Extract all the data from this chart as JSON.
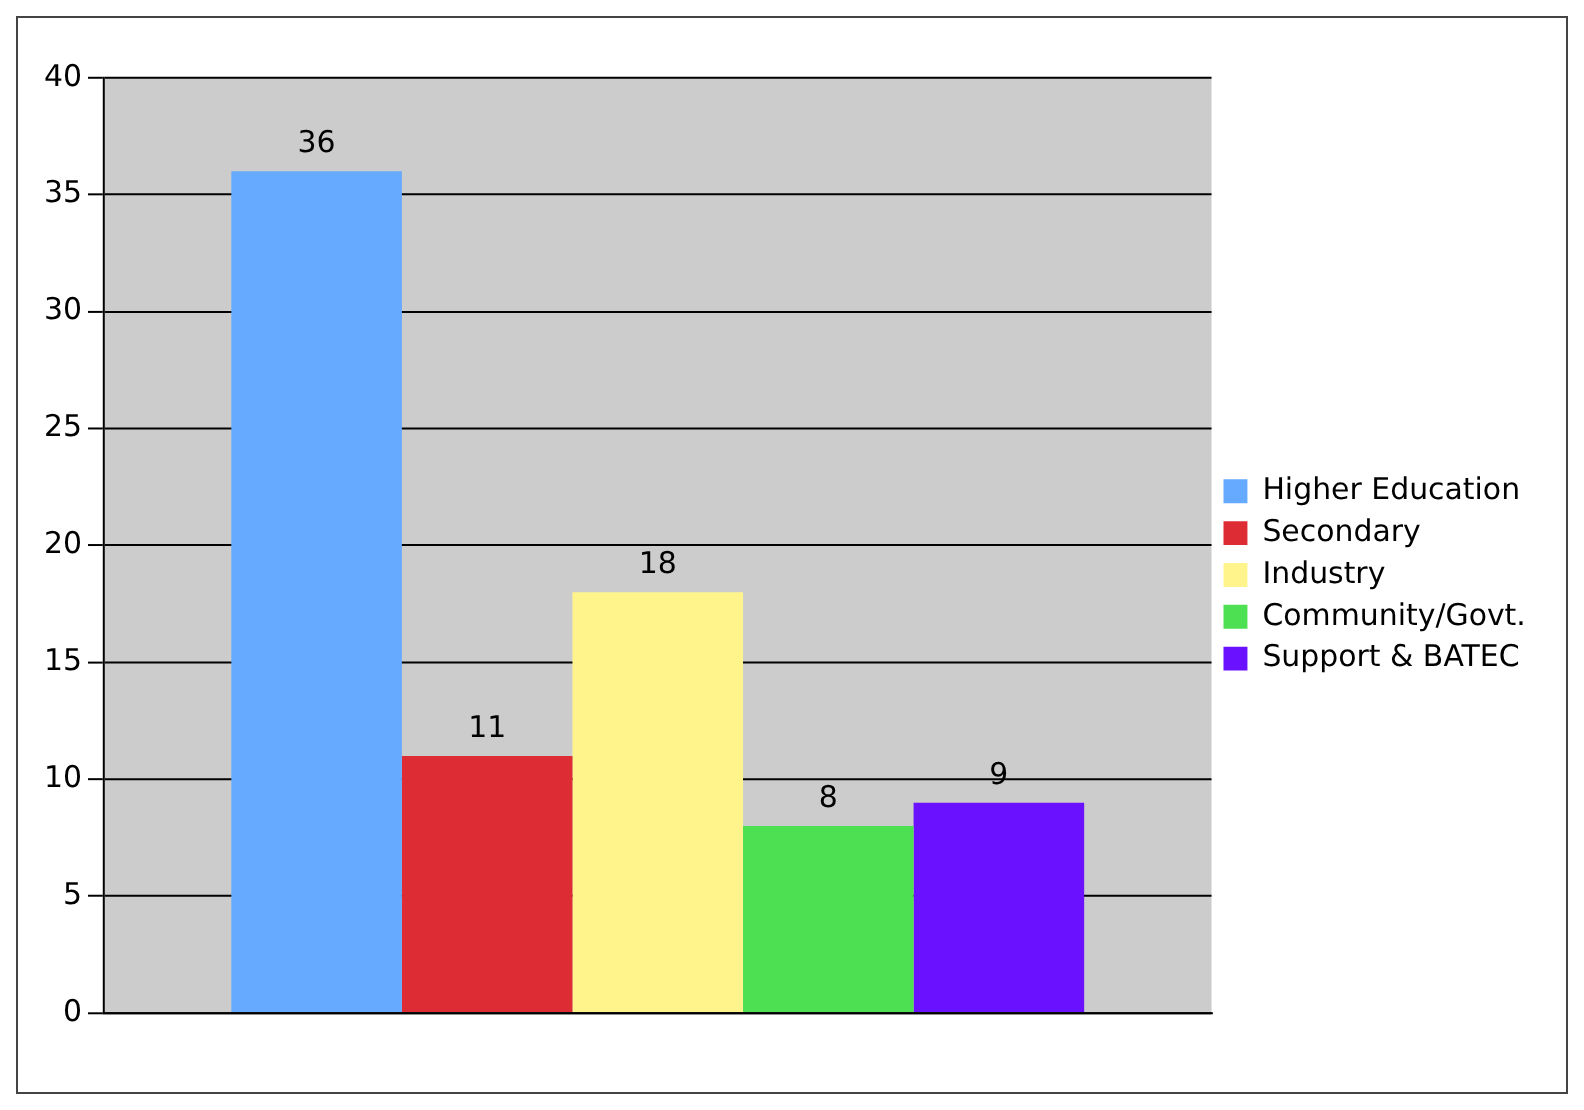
{
  "chart_data": {
    "type": "bar",
    "categories": [
      null
    ],
    "series": [
      {
        "name": "Higher Education",
        "color": "#66aaff",
        "values": [
          36
        ]
      },
      {
        "name": "Secondary",
        "color": "#dd2c33",
        "values": [
          11
        ]
      },
      {
        "name": "Industry",
        "color": "#fff48c",
        "values": [
          18
        ]
      },
      {
        "name": "Community/Govt.",
        "color": "#4ce052",
        "values": [
          8
        ]
      },
      {
        "name": "Support & BATEC",
        "color": "#6a11ff",
        "values": [
          9
        ]
      }
    ],
    "ylim": [
      0,
      40
    ],
    "yticks": [
      0,
      5,
      10,
      15,
      20,
      25,
      30,
      35,
      40
    ],
    "grid": "y",
    "legend": "right",
    "data_labels": true
  }
}
